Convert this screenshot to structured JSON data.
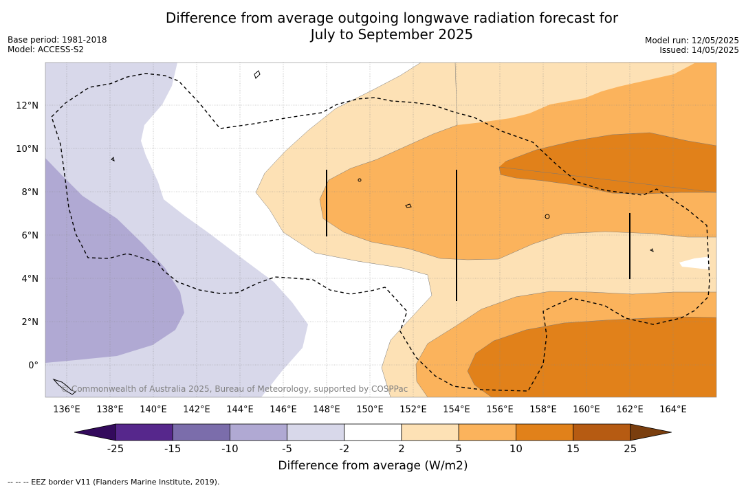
{
  "title_line1": "Difference from average outgoing longwave radiation forecast for",
  "title_line2": "July to September 2025",
  "base_period": "Base period: 1981-2018",
  "model": "Model: ACCESS-S2",
  "model_run": "Model run: 12/05/2025",
  "issued": "Issued: 14/05/2025",
  "copyright": "© Commonwealth of Australia 2025, Bureau of Meteorology, supported by COSPPac",
  "lon_labels": [
    "136°E",
    "138°E",
    "140°E",
    "142°E",
    "144°E",
    "146°E",
    "148°E",
    "150°E",
    "152°E",
    "154°E",
    "156°E",
    "158°E",
    "160°E",
    "162°E",
    "164°E"
  ],
  "lat_labels": [
    "12°N",
    "10°N",
    "8°N",
    "6°N",
    "4°N",
    "2°N",
    "0°"
  ],
  "colorbar": {
    "ticks": [
      "-25",
      "-15",
      "-10",
      "-5",
      "-2",
      "2",
      "5",
      "10",
      "15",
      "25"
    ],
    "colors": [
      "#56278c",
      "#7b6dab",
      "#b0a9d3",
      "#d8d8ea",
      "#ffffff",
      "#fde1b5",
      "#fbb35c",
      "#e1811a",
      "#b65b12"
    ],
    "under_color": "#330a5c",
    "over_color": "#7a3e0e",
    "label": "Difference from average (W/m2)"
  },
  "footnote": "--  --  -- EEZ border V11 (Flanders Marine Institute, 2019)."
}
